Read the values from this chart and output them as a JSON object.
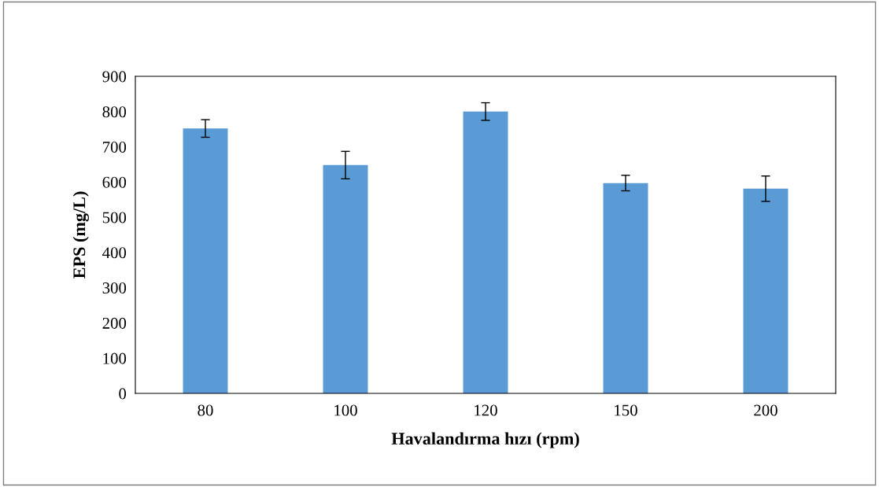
{
  "chart_data": {
    "type": "bar",
    "xlabel": "Havalandırma hızı (rpm)",
    "ylabel": "EPS (mg/L)",
    "categories": [
      "80",
      "100",
      "120",
      "150",
      "200"
    ],
    "values": [
      752,
      648,
      800,
      597,
      581
    ],
    "errors": [
      25,
      39,
      25,
      22,
      36
    ],
    "color": "#5b9bd5",
    "ylim": [
      0,
      900
    ],
    "yticks": [
      0,
      100,
      200,
      300,
      400,
      500,
      600,
      700,
      800,
      900
    ],
    "grid": false,
    "legend": false
  }
}
